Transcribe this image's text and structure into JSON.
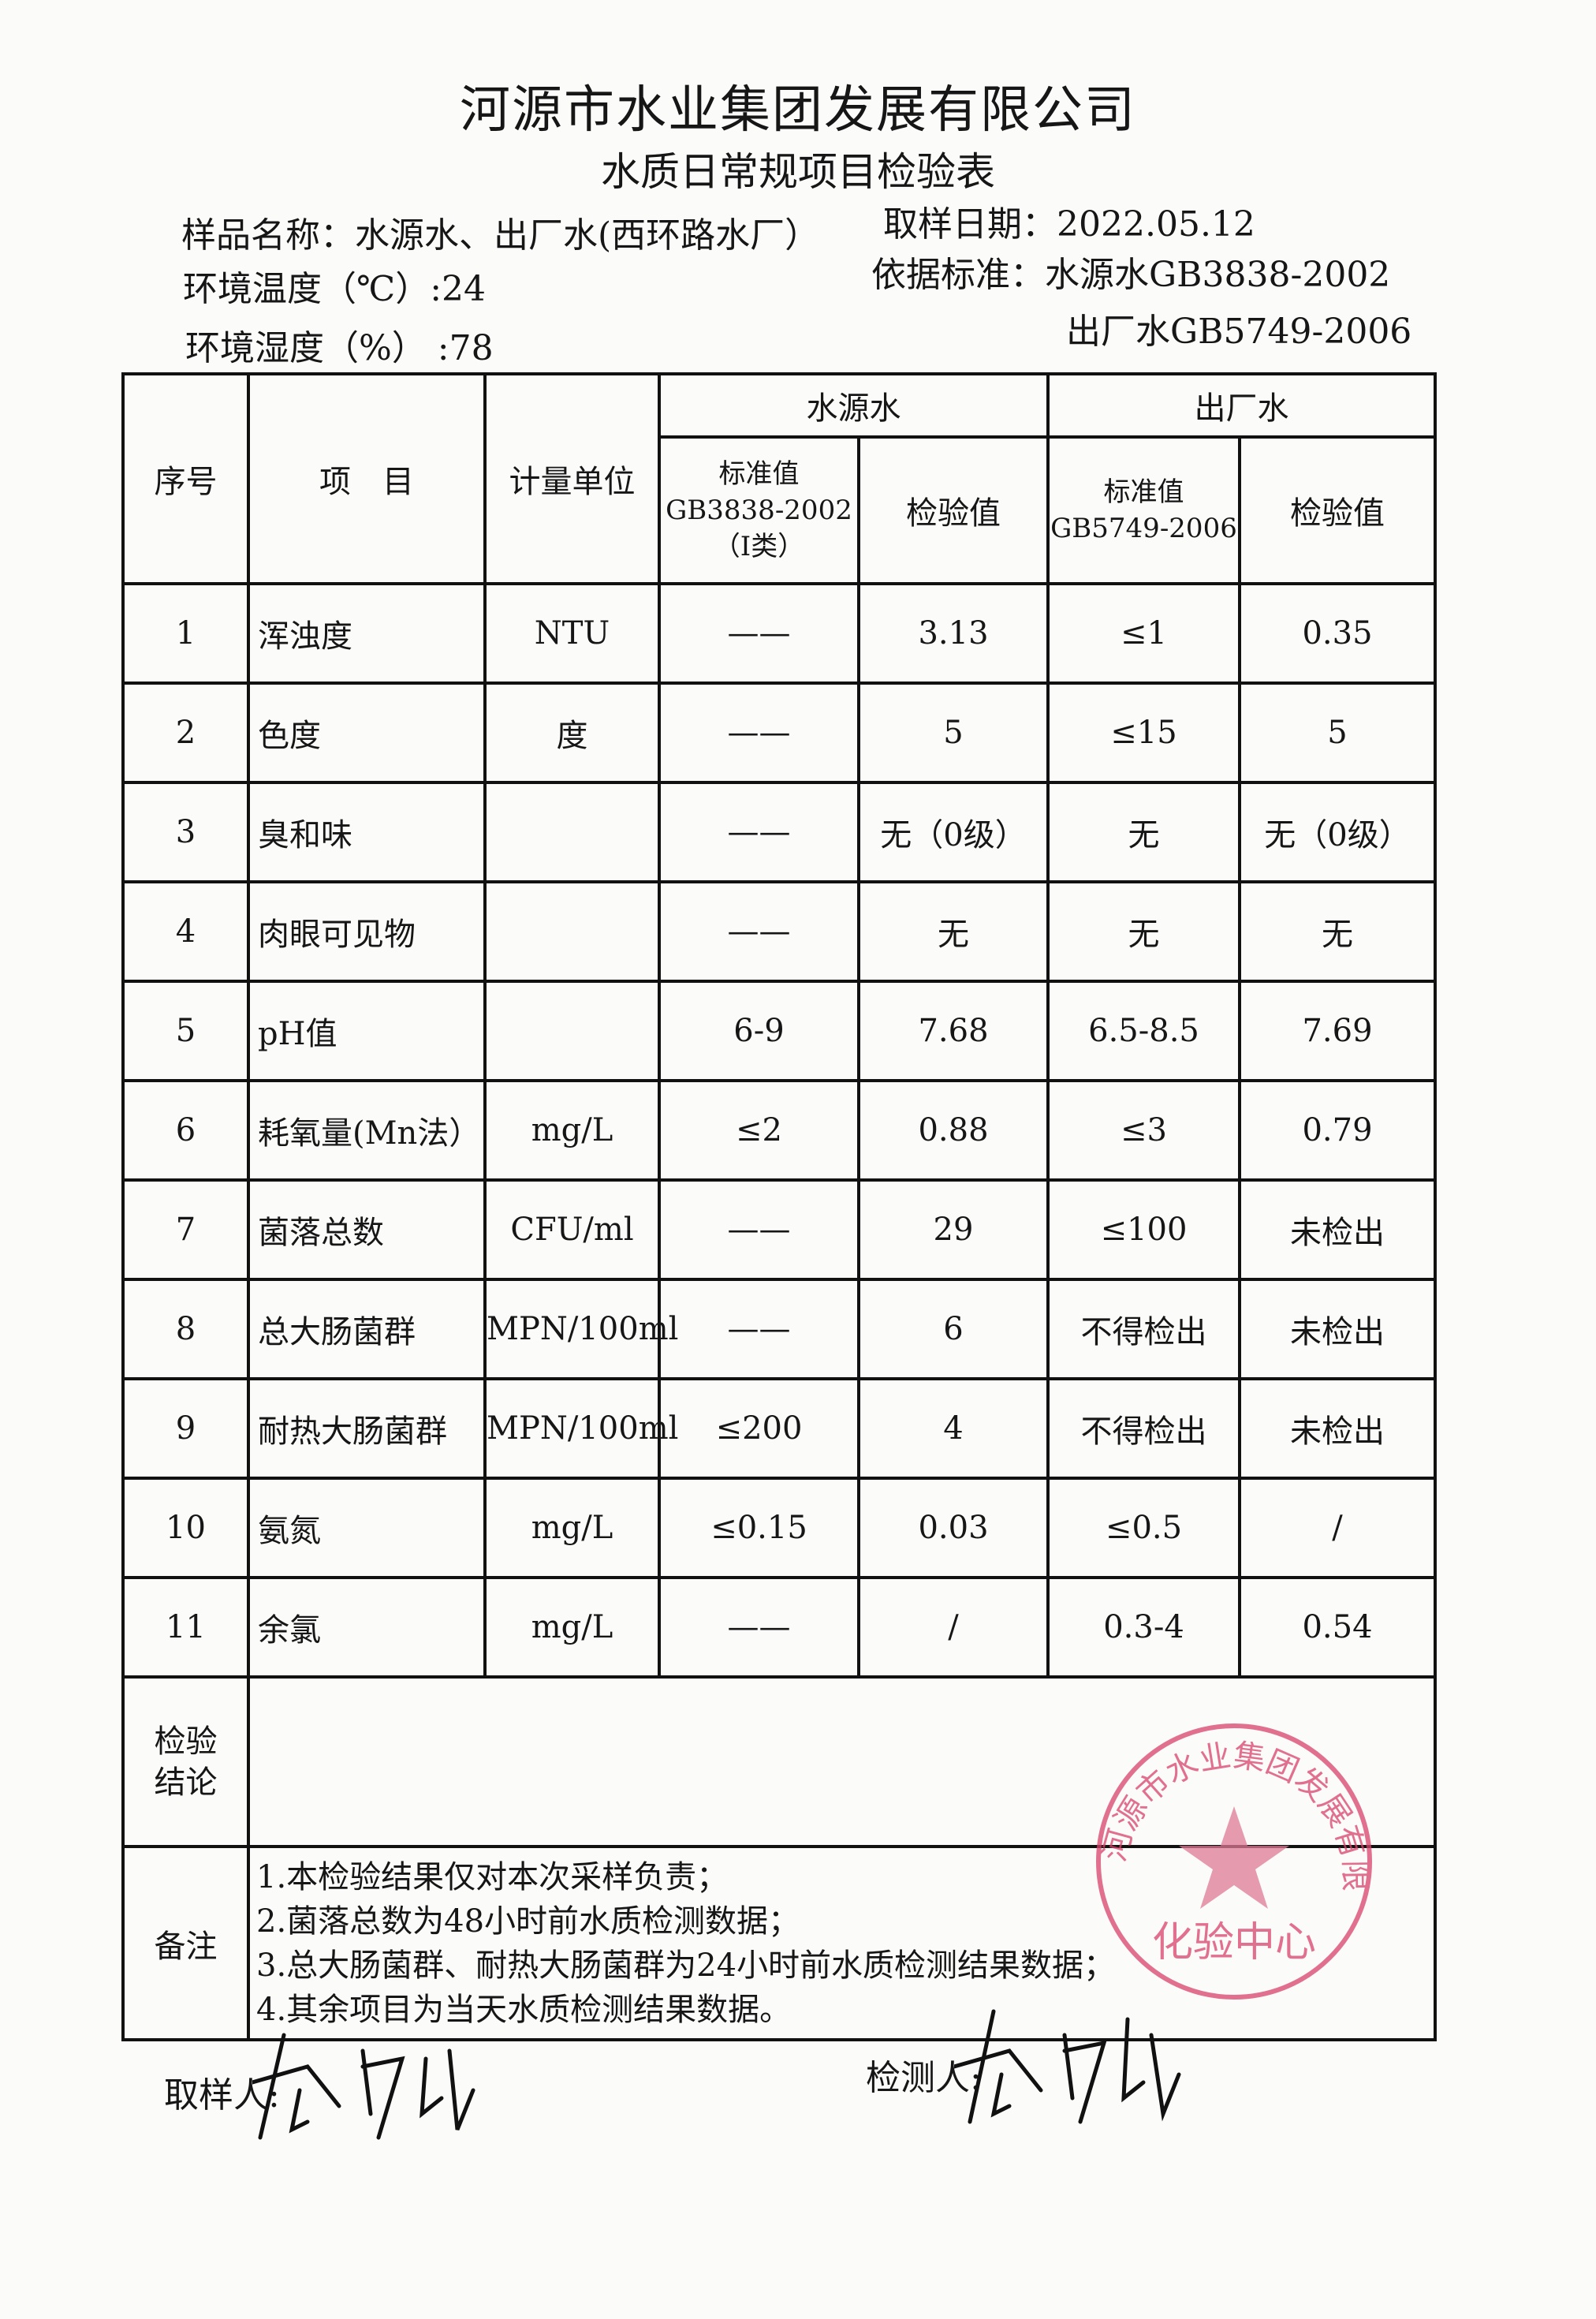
{
  "header": {
    "company": "河源市水业集团发展有限公司",
    "form_title": "水质日常规项目检验表",
    "sample_name": "样品名称：水源水、出厂水(西环路水厂）",
    "sample_date": "取样日期：2022.05.12",
    "temperature": "环境温度（℃）:24",
    "humidity": "环境湿度（%） :78",
    "standard_source": "依据标准：水源水GB3838-2002",
    "standard_outlet": "出厂水GB5749-2006"
  },
  "table": {
    "col_no": "序号",
    "col_item": "项　目",
    "col_unit": "计量单位",
    "group_source": "水源水",
    "group_outlet": "出厂水",
    "source_standard": "标准值\nGB3838-2002\n（Ⅰ类）",
    "source_value": "检验值",
    "outlet_standard": "标准值\nGB5749-2006",
    "outlet_value": "检验值",
    "rows": [
      {
        "no": "1",
        "item": "浑浊度",
        "unit": "NTU",
        "src_std": "——",
        "src_val": "3.13",
        "out_std": "≤1",
        "out_val": "0.35"
      },
      {
        "no": "2",
        "item": "色度",
        "unit": "度",
        "src_std": "——",
        "src_val": "5",
        "out_std": "≤15",
        "out_val": "5"
      },
      {
        "no": "3",
        "item": "臭和味",
        "unit": "",
        "src_std": "——",
        "src_val": "无（0级）",
        "out_std": "无",
        "out_val": "无（0级）"
      },
      {
        "no": "4",
        "item": "肉眼可见物",
        "unit": "",
        "src_std": "——",
        "src_val": "无",
        "out_std": "无",
        "out_val": "无"
      },
      {
        "no": "5",
        "item": "pH值",
        "unit": "",
        "src_std": "6-9",
        "src_val": "7.68",
        "out_std": "6.5-8.5",
        "out_val": "7.69"
      },
      {
        "no": "6",
        "item": "耗氧量(Mn法）",
        "unit": "mg/L",
        "src_std": "≤2",
        "src_val": "0.88",
        "out_std": "≤3",
        "out_val": "0.79"
      },
      {
        "no": "7",
        "item": "菌落总数",
        "unit": "CFU/ml",
        "src_std": "——",
        "src_val": "29",
        "out_std": "≤100",
        "out_val": "未检出"
      },
      {
        "no": "8",
        "item": "总大肠菌群",
        "unit": "MPN/100ml",
        "src_std": "——",
        "src_val": "6",
        "out_std": "不得检出",
        "out_val": "未检出"
      },
      {
        "no": "9",
        "item": "耐热大肠菌群",
        "unit": "MPN/100ml",
        "src_std": "≤200",
        "src_val": "4",
        "out_std": "不得检出",
        "out_val": "未检出"
      },
      {
        "no": "10",
        "item": "氨氮",
        "unit": "mg/L",
        "src_std": "≤0.15",
        "src_val": "0.03",
        "out_std": "≤0.5",
        "out_val": "/"
      },
      {
        "no": "11",
        "item": "余氯",
        "unit": "mg/L",
        "src_std": "——",
        "src_val": "/",
        "out_std": "0.3-4",
        "out_val": "0.54"
      }
    ],
    "conclusion_label": "检验\n结论",
    "conclusion_value": "",
    "notes_label": "备注",
    "notes": [
      "1.本检验结果仅对本次采样负责；",
      "2.菌落总数为48小时前水质检测数据；",
      "3.总大肠菌群、耐热大肠菌群为24小时前水质检测结果数据；",
      "4.其余项目为当天水质检测结果数据。"
    ]
  },
  "footer": {
    "sampler_label": "取样人:",
    "tester_label": "检测人:"
  },
  "stamp": {
    "text_ring": "河源市水业集团发展有限公司",
    "text_center": "化验中心",
    "color": "#d9416a"
  }
}
